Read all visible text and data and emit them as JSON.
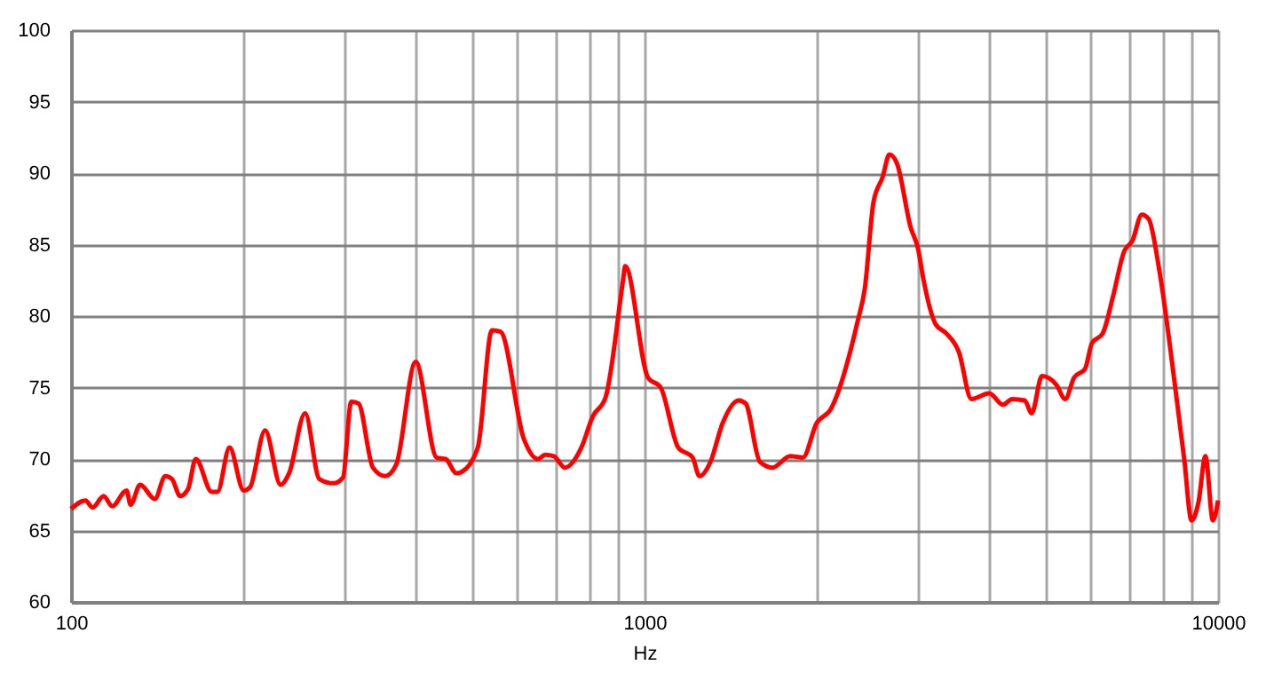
{
  "chart_data": {
    "type": "line",
    "xlabel": "Hz",
    "log": "x",
    "grid": true,
    "marker": "none",
    "line_style": "solid",
    "xlim": [
      100,
      10000
    ],
    "ylim": [
      60,
      100
    ],
    "xticks": [
      100,
      {
        "value": 200,
        "label": null
      },
      {
        "value": 300,
        "label": null
      },
      {
        "value": 400,
        "label": null
      },
      {
        "value": 500,
        "label": null
      },
      {
        "value": 600,
        "label": null
      },
      {
        "value": 700,
        "label": null
      },
      {
        "value": 800,
        "label": null
      },
      {
        "value": 900,
        "label": null
      },
      1000,
      {
        "value": 2000,
        "label": null
      },
      {
        "value": 3000,
        "label": null
      },
      {
        "value": 4000,
        "label": null
      },
      {
        "value": 5000,
        "label": null
      },
      {
        "value": 6000,
        "label": null
      },
      {
        "value": 7000,
        "label": null
      },
      {
        "value": 8000,
        "label": null
      },
      {
        "value": 9000,
        "label": null
      },
      10000
    ],
    "yticks": [
      60,
      65,
      70,
      75,
      80,
      85,
      90,
      95,
      100
    ],
    "series": [
      {
        "color": "#ff0000",
        "x": [
          100,
          106,
          109,
          114,
          118,
          125,
          127,
          132,
          140,
          146,
          150,
          155,
          160,
          165,
          176,
          180,
          189,
          200,
          205,
          218,
          232,
          240,
          256,
          271,
          287,
          298,
          308,
          317,
          336,
          353,
          369,
          399,
          434,
          450,
          470,
          480,
          512,
          542,
          561,
          616,
          652,
          671,
          695,
          726,
          774,
          813,
          855,
          918,
          925,
          1014,
          1067,
          1145,
          1213,
          1247,
          1303,
          1368,
          1459,
          1500,
          1589,
          1671,
          1795,
          1888,
          1995,
          2113,
          2355,
          2421,
          2508,
          2600,
          2673,
          2754,
          2911,
          2999,
          3063,
          3221,
          3357,
          3532,
          3715,
          3990,
          4217,
          4375,
          4600,
          4732,
          4932,
          5224,
          5415,
          5610,
          5861,
          6026,
          6295,
          6562,
          6855,
          7096,
          7362,
          7568,
          7907,
          8433,
          8730,
          8990,
          9247,
          9506,
          9795,
          10000
        ],
        "values": [
          66.5,
          67.1,
          66.6,
          67.4,
          66.7,
          67.8,
          66.8,
          68.2,
          67.2,
          68.8,
          68.6,
          67.4,
          67.9,
          70.0,
          67.7,
          67.7,
          70.8,
          67.8,
          68.0,
          72.0,
          68.2,
          69.0,
          73.2,
          68.6,
          68.3,
          68.7,
          74.0,
          73.9,
          69.4,
          68.8,
          69.6,
          76.8,
          70.1,
          70.0,
          69.0,
          69.1,
          70.8,
          79.0,
          78.9,
          71.4,
          70.0,
          70.3,
          70.2,
          69.4,
          70.7,
          73.0,
          74.3,
          82.6,
          83.5,
          75.7,
          75.0,
          70.8,
          70.1,
          68.8,
          69.8,
          72.5,
          74.1,
          73.9,
          69.8,
          69.4,
          70.2,
          70.1,
          72.5,
          73.5,
          79.7,
          81.9,
          88.0,
          89.7,
          91.3,
          90.7,
          86.2,
          84.7,
          82.6,
          79.4,
          78.8,
          77.5,
          74.2,
          74.6,
          73.8,
          74.2,
          74.1,
          73.2,
          75.8,
          75.2,
          74.2,
          75.7,
          76.3,
          78.1,
          78.8,
          81.4,
          84.5,
          85.3,
          87.1,
          86.8,
          83.1,
          74.8,
          70.0,
          65.7,
          67.0,
          70.2,
          65.7,
          67.1
        ]
      }
    ]
  }
}
